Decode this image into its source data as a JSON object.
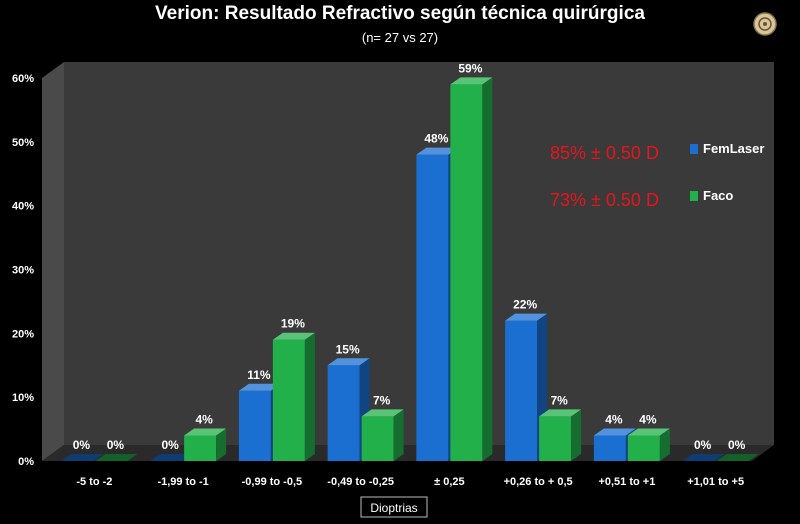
{
  "chart_data": {
    "type": "bar",
    "title": "Verion: Resultado Refractivo según técnica quirúrgica",
    "subtitle": "(n= 27 vs 27)",
    "xlabel": "Dioptrias",
    "categories": [
      "-5 to -2",
      "-1,99 to -1",
      "-0,99 to -0,5",
      "-0,49 to -0,25",
      "± 0,25",
      "+0,26 to + 0,5",
      "+0,51 to +1",
      "+1,01 to +5"
    ],
    "series": [
      {
        "name": "FemLaser",
        "values": [
          0,
          0,
          11,
          15,
          48,
          22,
          4,
          0
        ],
        "labels": [
          "0%",
          "0%",
          "11%",
          "15%",
          "48%",
          "22%",
          "4%",
          "0%"
        ],
        "color": "#1a6fd1"
      },
      {
        "name": "Faco",
        "values": [
          0,
          4,
          19,
          7,
          59,
          7,
          4,
          0
        ],
        "labels": [
          "0%",
          "4%",
          "19%",
          "7%",
          "59%",
          "7%",
          "4%",
          "0%"
        ],
        "color": "#22b04b"
      }
    ],
    "ylim": [
      0,
      60
    ],
    "yticks": [
      "0%",
      "10%",
      "20%",
      "30%",
      "40%",
      "50%",
      "60%"
    ],
    "grid": false,
    "legend_position": "right",
    "annotations": [
      {
        "text": "85% ± 0.50 D",
        "color": "#e8141a",
        "series": "FemLaser"
      },
      {
        "text": "73% ± 0.50 D",
        "color": "#e8141a",
        "series": "Faco"
      }
    ]
  },
  "colors": {
    "background": "#000000",
    "plot_area": "#3a3a3a",
    "side_wall": "#4a4a4a",
    "femlaser": "#1a6fd1",
    "faco": "#22b04b",
    "annotation": "#e8141a"
  },
  "logo": {
    "icon": "medallion-icon"
  }
}
